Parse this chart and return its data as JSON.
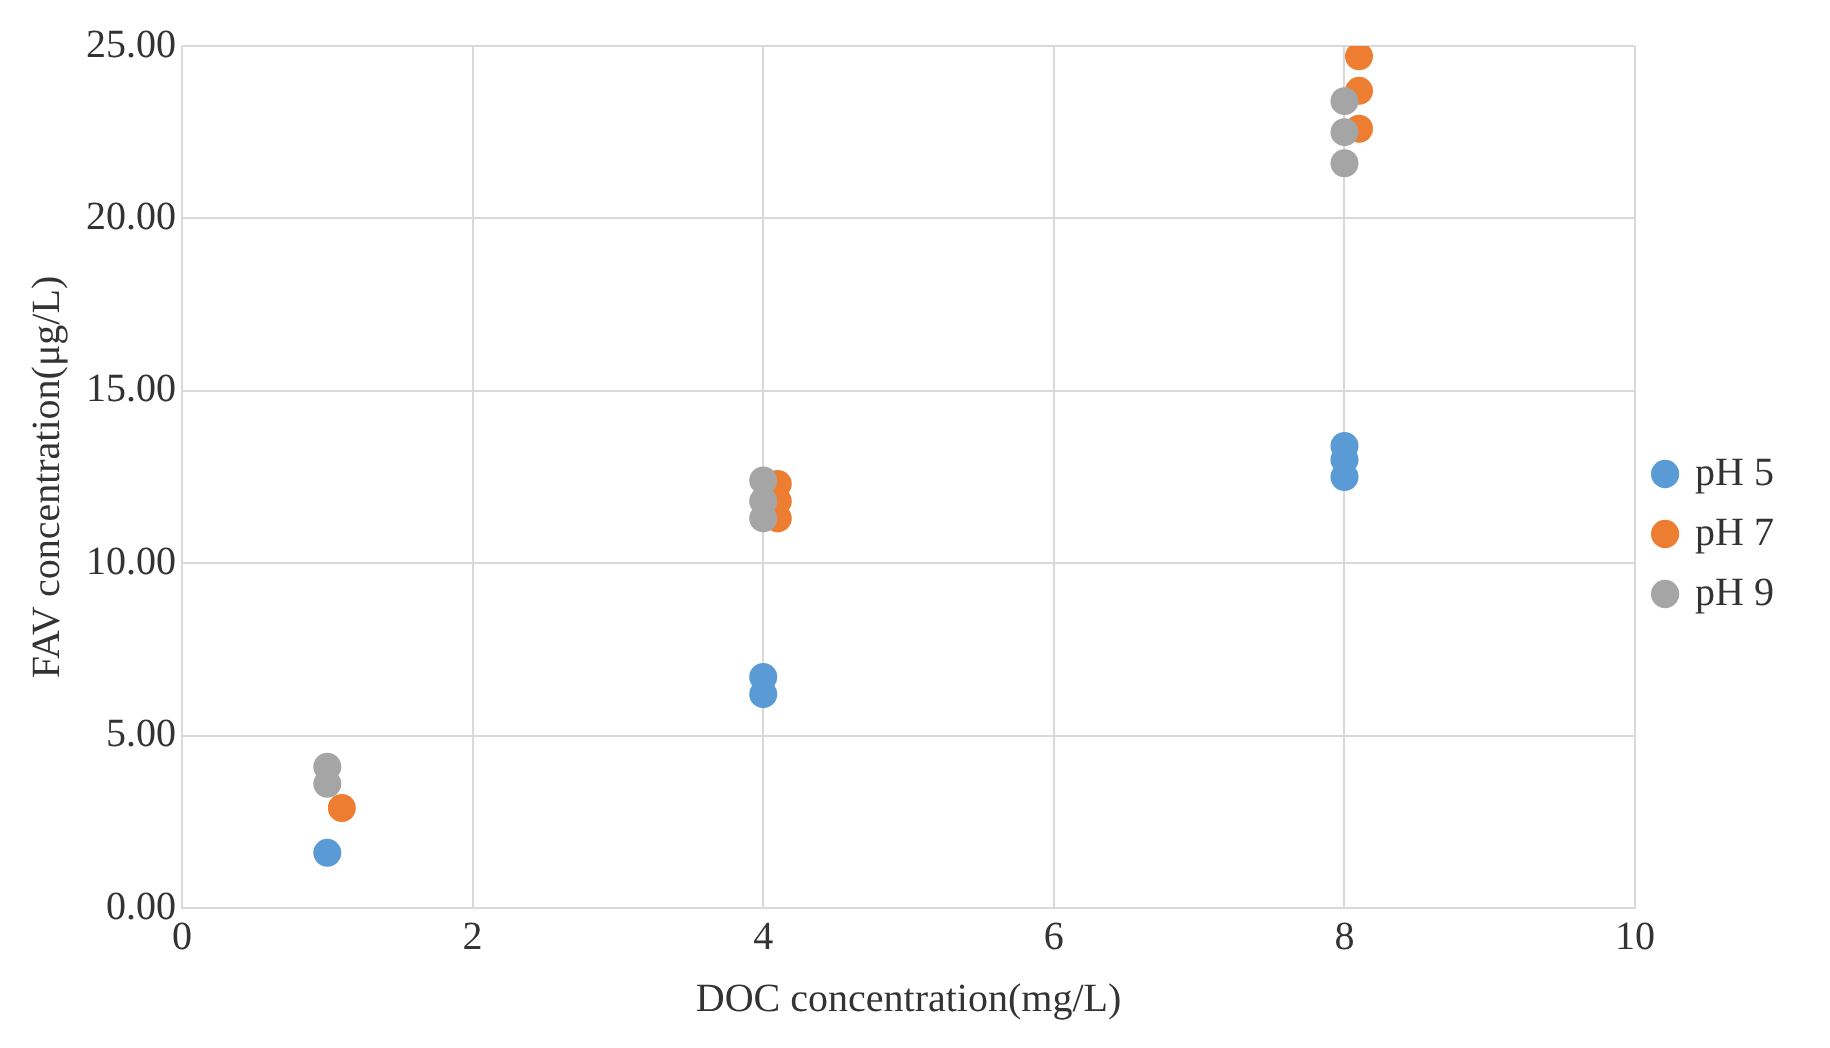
{
  "chart_data": {
    "type": "scatter",
    "xlabel": "DOC concentration(mg/L)",
    "ylabel": "FAV concentration(μg/L)",
    "series": [
      {
        "name": "pH 5",
        "color": "#5b9bd5",
        "x": [
          1,
          4,
          4,
          8,
          8,
          8
        ],
        "values": [
          1.6,
          6.2,
          6.7,
          12.5,
          13.0,
          13.4
        ]
      },
      {
        "name": "pH 7",
        "color": "#ed7d31",
        "x": [
          1.1,
          4.1,
          4.1,
          4.1,
          8.1,
          8.1,
          8.1
        ],
        "values": [
          2.9,
          11.3,
          11.8,
          12.3,
          22.6,
          23.7,
          24.7
        ]
      },
      {
        "name": "pH 9",
        "color": "#a5a5a5",
        "x": [
          1,
          1,
          4,
          4,
          4,
          8,
          8,
          8
        ],
        "values": [
          3.6,
          4.1,
          11.3,
          11.8,
          12.4,
          21.6,
          22.5,
          23.4
        ]
      }
    ],
    "xlim": [
      0,
      10
    ],
    "xticks": [
      0,
      2,
      4,
      6,
      8,
      10
    ],
    "ylim": [
      0,
      25
    ],
    "yticks": [
      {
        "value": 0,
        "label": "0.00"
      },
      {
        "value": 5,
        "label": "5.00"
      },
      {
        "value": 10,
        "label": "10.00"
      },
      {
        "value": 15,
        "label": "15.00"
      },
      {
        "value": 20,
        "label": "20.00"
      },
      {
        "value": 25,
        "label": "25.00"
      }
    ],
    "grid": true,
    "legend": "right",
    "marker": "circle"
  }
}
